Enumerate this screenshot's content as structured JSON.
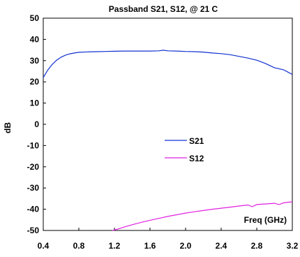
{
  "chart_data": {
    "type": "line",
    "title": "Passband S21, S12, @ 21 C",
    "xlabel": "",
    "ylabel": "dB",
    "xlim": [
      0.4,
      3.2
    ],
    "ylim": [
      -50,
      50
    ],
    "x_ticks": [
      "0.4",
      "0.8",
      "1.2",
      "1.6",
      "2.0",
      "2.4",
      "2.8",
      "3.2"
    ],
    "y_ticks": [
      "50",
      "40",
      "30",
      "20",
      "10",
      "0",
      "-10",
      "-20",
      "-30",
      "-40",
      "-50"
    ],
    "annotation": "Freq (GHz)",
    "grid": false,
    "legend": "center-right",
    "series": [
      {
        "name": "S21",
        "color": "#1030d0",
        "x": [
          0.4,
          0.45,
          0.5,
          0.55,
          0.6,
          0.65,
          0.7,
          0.75,
          0.8,
          0.9,
          1.0,
          1.1,
          1.2,
          1.3,
          1.4,
          1.5,
          1.6,
          1.7,
          1.75,
          1.8,
          1.9,
          2.0,
          2.1,
          2.2,
          2.3,
          2.4,
          2.5,
          2.6,
          2.7,
          2.8,
          2.85,
          2.9,
          2.95,
          3.0,
          3.05,
          3.1,
          3.15,
          3.2
        ],
        "values": [
          22,
          25.5,
          28.2,
          30.2,
          31.6,
          32.6,
          33.2,
          33.6,
          33.9,
          34.1,
          34.2,
          34.3,
          34.4,
          34.5,
          34.5,
          34.5,
          34.5,
          34.6,
          34.9,
          34.6,
          34.5,
          34.3,
          34.2,
          34.0,
          33.6,
          33.3,
          32.8,
          32.0,
          31.2,
          30.2,
          29.4,
          28.6,
          27.6,
          26.6,
          26.2,
          25.7,
          24.6,
          23.5
        ]
      },
      {
        "name": "S12",
        "color": "#e020e0",
        "x": [
          1.18,
          1.25,
          1.3,
          1.4,
          1.5,
          1.6,
          1.7,
          1.8,
          1.9,
          2.0,
          2.1,
          2.2,
          2.3,
          2.4,
          2.5,
          2.6,
          2.7,
          2.75,
          2.8,
          2.9,
          3.0,
          3.05,
          3.1,
          3.15,
          3.2
        ],
        "values": [
          -50,
          -49.2,
          -48.5,
          -47.3,
          -46.2,
          -45.2,
          -44.3,
          -43.4,
          -42.6,
          -41.8,
          -41.2,
          -40.6,
          -40.0,
          -39.5,
          -39.0,
          -38.5,
          -38.0,
          -38.8,
          -37.8,
          -37.5,
          -37.2,
          -37.8,
          -37.0,
          -36.7,
          -36.5
        ]
      }
    ]
  }
}
